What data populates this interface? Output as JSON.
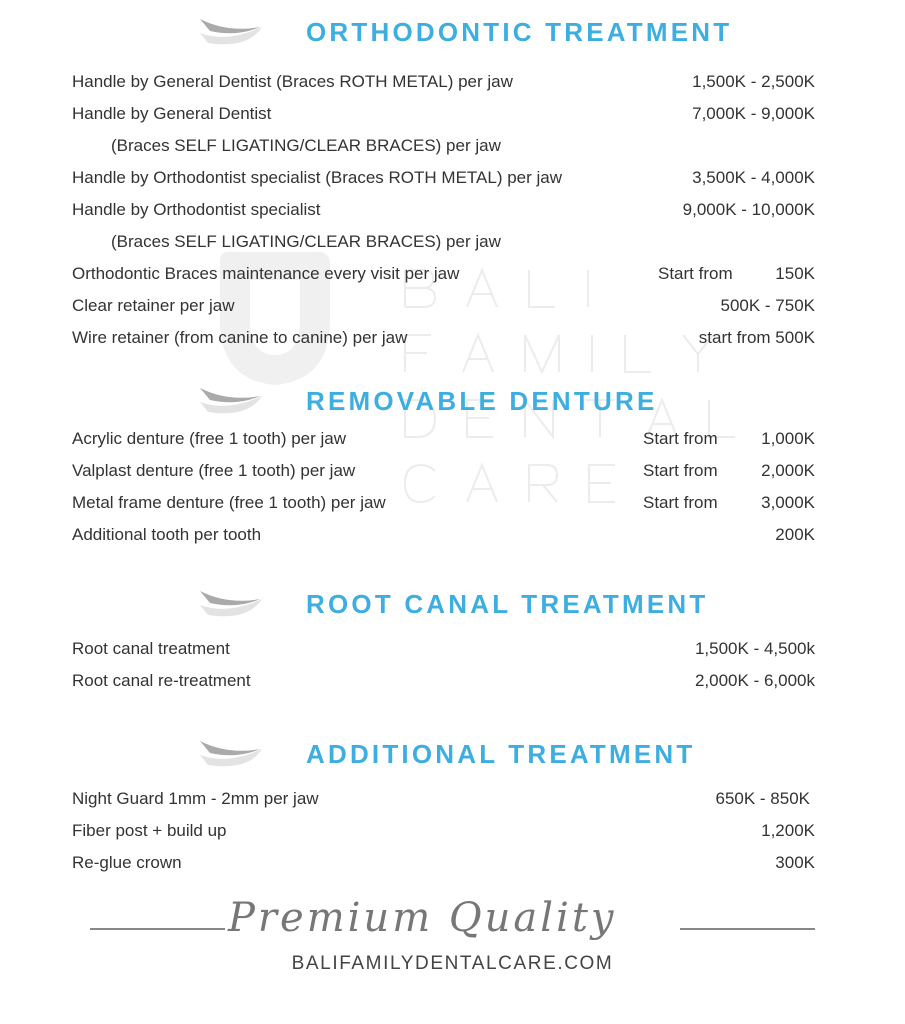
{
  "watermark": {
    "lines": [
      "BALI",
      "FAMILY",
      "DENTAL",
      "CARE"
    ]
  },
  "colors": {
    "heading": "#3eaee0",
    "text": "#333333"
  },
  "sections": [
    {
      "title": "ORTHODONTIC TREATMENT",
      "rows": [
        {
          "name": "Handle by General Dentist (Braces ROTH METAL) per jaw",
          "price": "1,500K - 2,500K"
        },
        {
          "name": "Handle by General Dentist",
          "price": "7,000K - 9,000K"
        },
        {
          "name": "(Braces SELF LIGATING/CLEAR BRACES) per jaw",
          "price": ""
        },
        {
          "name": "Handle by Orthodontist specialist (Braces ROTH METAL) per jaw",
          "price": "3,500K - 4,000K"
        },
        {
          "name": "Handle by Orthodontist specialist",
          "price": "9,000K - 10,000K"
        },
        {
          "name": "(Braces SELF LIGATING/CLEAR BRACES) per jaw",
          "price": ""
        },
        {
          "name": "Orthodontic Braces maintenance every visit per jaw",
          "prefix": "Start from",
          "price": "150K"
        },
        {
          "name": "Clear retainer per jaw",
          "price": "500K - 750K"
        },
        {
          "name": "Wire retainer (from canine to canine) per jaw",
          "price": "start from 500K"
        }
      ]
    },
    {
      "title": "REMOVABLE DENTURE",
      "rows": [
        {
          "name": "Acrylic denture (free 1 tooth) per jaw",
          "prefix": "Start from",
          "price": "1,000K"
        },
        {
          "name": "Valplast denture (free 1 tooth) per jaw",
          "prefix": "Start from",
          "price": "2,000K"
        },
        {
          "name": "Metal frame denture (free 1 tooth) per jaw",
          "prefix": "Start from",
          "price": "3,000K"
        },
        {
          "name": "Additional tooth per tooth",
          "price": "200K"
        }
      ]
    },
    {
      "title": "ROOT CANAL TREATMENT",
      "rows": [
        {
          "name": "Root canal treatment",
          "price": "1,500K - 4,500k"
        },
        {
          "name": "Root canal re-treatment",
          "price": "2,000K - 6,000k"
        }
      ]
    },
    {
      "title": "ADDITIONAL TREATMENT",
      "rows": [
        {
          "name": "Night Guard 1mm - 2mm per jaw",
          "price": "650K - 850K"
        },
        {
          "name": "Fiber post + build up",
          "price": "1,200K"
        },
        {
          "name": "Re-glue crown",
          "price": "300K"
        }
      ]
    }
  ],
  "footer": {
    "tagline": "Premium Quality",
    "website": "BALIFAMILYDENTALCARE.COM"
  }
}
